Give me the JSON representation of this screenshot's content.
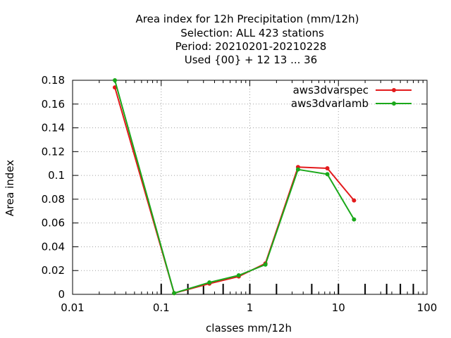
{
  "chart_data": {
    "type": "line",
    "title_lines": [
      "Area index  for 12h Precipitation (mm/12h)",
      "Selection: ALL    423 stations",
      "Period: 20210201-20210228",
      "Used {00} + 12 13 ... 36"
    ],
    "xlabel": "classes mm/12h",
    "ylabel": "Area index",
    "x_scale": "log",
    "xlim": [
      0.01,
      100
    ],
    "ylim": [
      0,
      0.18
    ],
    "x_ticks": [
      0.01,
      0.1,
      1,
      10,
      100
    ],
    "x_tick_labels": [
      "0.01",
      "0.1",
      "1",
      "10",
      "100"
    ],
    "y_ticks": [
      0,
      0.02,
      0.04,
      0.06,
      0.08,
      0.1,
      0.12,
      0.14,
      0.16,
      0.18
    ],
    "y_tick_labels": [
      "0",
      "0.02",
      "0.04",
      "0.06",
      "0.08",
      "0.1",
      "0.12",
      "0.14",
      "0.16",
      "0.18"
    ],
    "class_marks": [
      0.1,
      0.2,
      0.3,
      0.5,
      1,
      2,
      5,
      10,
      20,
      35,
      50,
      70
    ],
    "grid": true,
    "legend_position": "top-right",
    "series": [
      {
        "name": "aws3dvarspec",
        "color": "#e31a1c",
        "x": [
          0.03,
          0.14,
          0.35,
          0.75,
          1.5,
          3.5,
          7.5,
          15
        ],
        "y": [
          0.174,
          0.001,
          0.009,
          0.015,
          0.026,
          0.107,
          0.106,
          0.079
        ]
      },
      {
        "name": "aws3dvarlamb",
        "color": "#1aa81a",
        "x": [
          0.03,
          0.14,
          0.35,
          0.75,
          1.5,
          3.5,
          7.5,
          15
        ],
        "y": [
          0.18,
          0.001,
          0.01,
          0.016,
          0.025,
          0.105,
          0.101,
          0.063
        ]
      }
    ]
  }
}
